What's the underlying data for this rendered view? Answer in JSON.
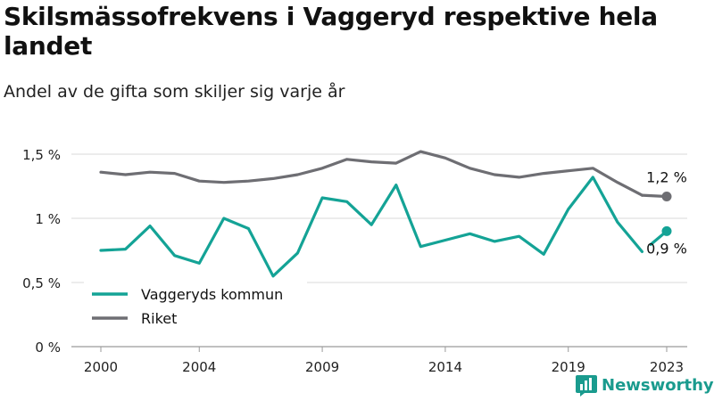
{
  "title": "Skilsmässofrekvens i Vaggeryd respektive hela landet",
  "subtitle": "Andel av de gifta som skiljer sig varje år",
  "brand": {
    "name": "Newsworthy",
    "color": "#1a9b8e",
    "icon": "bar-chart-logo-icon"
  },
  "colors": {
    "vaggeryd": "#14a396",
    "riket": "#6e6e73",
    "grid": "#d8d8d8"
  },
  "chart_data": {
    "type": "line",
    "x": [
      2000,
      2001,
      2002,
      2003,
      2004,
      2005,
      2006,
      2007,
      2008,
      2009,
      2010,
      2011,
      2012,
      2013,
      2014,
      2015,
      2016,
      2017,
      2018,
      2019,
      2020,
      2021,
      2022,
      2023
    ],
    "xticks": [
      2000,
      2004,
      2009,
      2014,
      2019,
      2023
    ],
    "xtick_labels": [
      "2000",
      "2004",
      "2009",
      "2014",
      "2019",
      "2023"
    ],
    "yticks": [
      0,
      0.5,
      1,
      1.5
    ],
    "ytick_labels": [
      "0 %",
      "0,5 %",
      "1 %",
      "1,5 %"
    ],
    "ylim": [
      0,
      1.5
    ],
    "xlim": [
      2000,
      2023
    ],
    "grid": true,
    "legend_position": "bottom-left",
    "series": [
      {
        "name": "Vaggeryds kommun",
        "color": "#14a396",
        "values": [
          0.75,
          0.76,
          0.94,
          0.71,
          0.65,
          1.0,
          0.92,
          0.55,
          0.73,
          1.16,
          1.13,
          0.95,
          1.26,
          0.78,
          0.83,
          0.88,
          0.82,
          0.86,
          0.72,
          1.07,
          1.32,
          0.97,
          0.74,
          0.9
        ],
        "end_label": "0,9 %"
      },
      {
        "name": "Riket",
        "color": "#6e6e73",
        "values": [
          1.36,
          1.34,
          1.36,
          1.35,
          1.29,
          1.28,
          1.29,
          1.31,
          1.34,
          1.39,
          1.46,
          1.44,
          1.43,
          1.52,
          1.47,
          1.39,
          1.34,
          1.32,
          1.35,
          1.37,
          1.39,
          1.28,
          1.18,
          1.17
        ],
        "end_label": "1,2 %"
      }
    ]
  }
}
